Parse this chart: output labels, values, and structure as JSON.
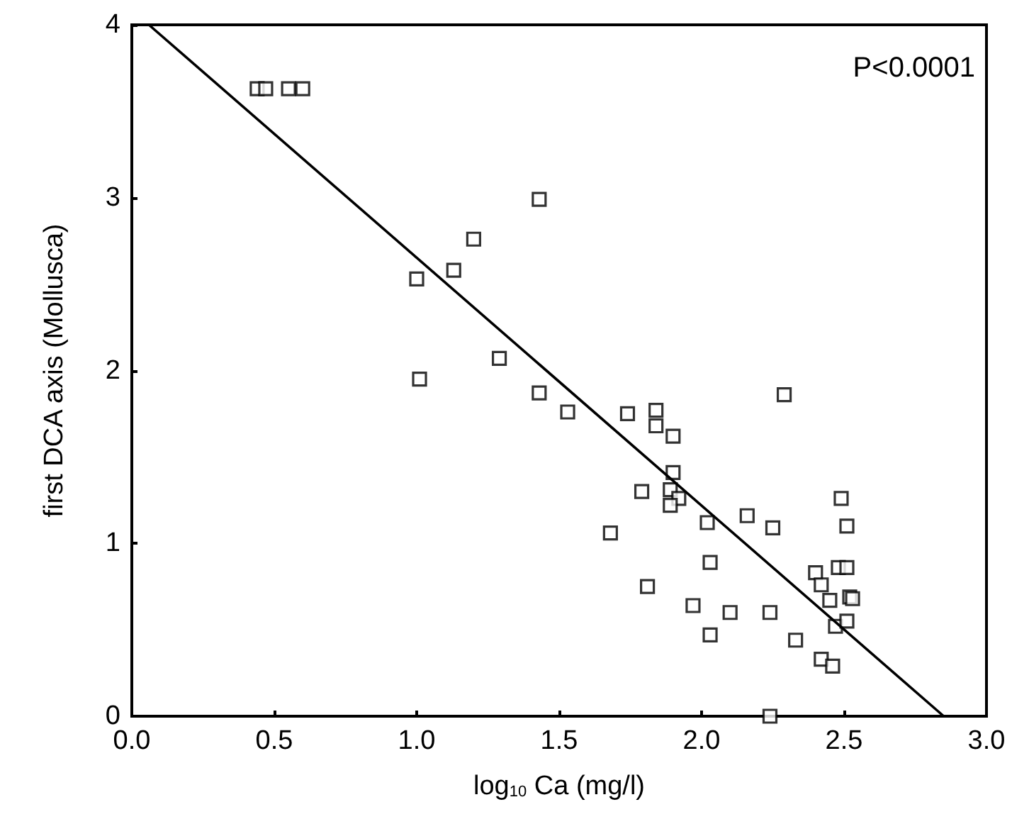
{
  "chart_data": {
    "type": "scatter",
    "xlabel": "log$_{10}$ Ca (mg/l)",
    "ylabel": "first DCA axis (Mollusca)",
    "xlim": [
      0,
      3
    ],
    "ylim": [
      0,
      4
    ],
    "xticks": [
      {
        "value": 0,
        "label": "0.0"
      },
      {
        "value": 0.5,
        "label": "0.5"
      },
      {
        "value": 1,
        "label": "1.0"
      },
      {
        "value": 1.5,
        "label": "1.5"
      },
      {
        "value": 2,
        "label": "2.0"
      },
      {
        "value": 2.5,
        "label": "2.5"
      },
      {
        "value": 3,
        "label": "3.0"
      }
    ],
    "yticks": [
      0,
      1,
      2,
      3,
      4
    ],
    "grid": false,
    "annotations": [
      "P<0.0001"
    ],
    "series": [
      {
        "marker": "square",
        "color": "#000000",
        "x": [
          0.44,
          0.47,
          0.55,
          0.6,
          1.43,
          1.2,
          1.13,
          1.0,
          1.01,
          1.29,
          1.43,
          1.53,
          1.74,
          1.84,
          1.84,
          1.9,
          2.29,
          1.9,
          1.79,
          1.89,
          1.92,
          1.89,
          1.68,
          2.02,
          2.16,
          2.25,
          2.49,
          2.51,
          2.03,
          1.81,
          1.97,
          2.1,
          2.24,
          2.03,
          2.33,
          2.4,
          2.42,
          2.48,
          2.51,
          2.45,
          2.52,
          2.53,
          2.47,
          2.51,
          2.42,
          2.46,
          2.24
        ],
        "values": [
          3.63,
          3.63,
          3.63,
          3.63,
          2.99,
          2.76,
          2.58,
          2.53,
          1.95,
          2.07,
          1.87,
          1.76,
          1.75,
          1.77,
          1.68,
          1.62,
          1.86,
          1.41,
          1.3,
          1.31,
          1.26,
          1.22,
          1.06,
          1.12,
          1.16,
          1.09,
          1.26,
          1.1,
          0.89,
          0.75,
          0.64,
          0.6,
          0.6,
          0.47,
          0.44,
          0.83,
          0.76,
          0.86,
          0.86,
          0.67,
          0.69,
          0.68,
          0.52,
          0.55,
          0.33,
          0.29,
          0.0
        ]
      },
      {
        "type": "line",
        "marker": "none",
        "line_style": "solid",
        "color": "#000000",
        "x": [
          0.06,
          2.85
        ],
        "values": [
          4,
          0
        ]
      }
    ]
  }
}
